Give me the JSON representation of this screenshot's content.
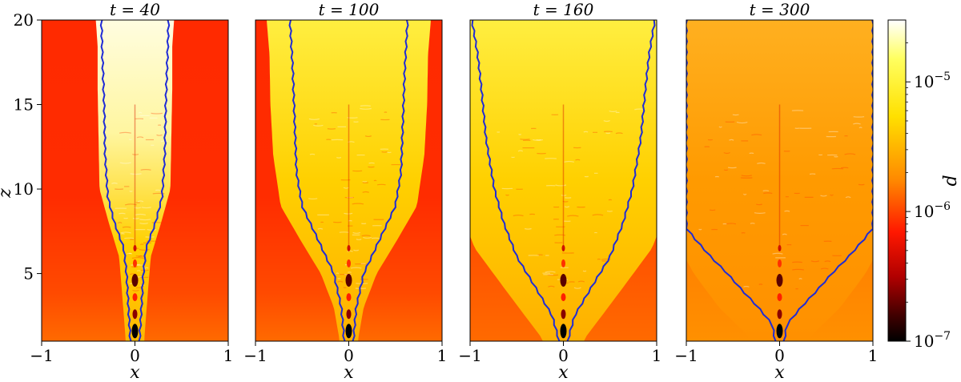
{
  "chart_data": {
    "type": "heatmap",
    "colormap": "hot",
    "contour_color": "#1f2bd6",
    "panels": [
      {
        "title": "t = 40",
        "xlim": [
          -1,
          1
        ],
        "ylim": [
          1,
          20
        ],
        "xticks": [
          "−1",
          "0",
          "1"
        ],
        "yticks": [
          "5",
          "10",
          "15",
          "20"
        ],
        "xlabel": "x",
        "ylabel": "z",
        "contour_halfwidth": [
          [
            1.1,
            0.05
          ],
          [
            3.0,
            0.07
          ],
          [
            5.0,
            0.09
          ],
          [
            6.5,
            0.12
          ],
          [
            8.0,
            0.22
          ],
          [
            9.5,
            0.29
          ],
          [
            12.0,
            0.32
          ],
          [
            15.0,
            0.33
          ],
          [
            18.0,
            0.35
          ],
          [
            20.0,
            0.36
          ]
        ],
        "bright_halfwidth": [
          [
            1.1,
            0.1
          ],
          [
            4.0,
            0.14
          ],
          [
            6.0,
            0.17
          ],
          [
            8.0,
            0.28
          ],
          [
            10.0,
            0.38
          ],
          [
            13.0,
            0.39
          ],
          [
            16.0,
            0.4
          ],
          [
            18.5,
            0.4
          ],
          [
            20.0,
            0.42
          ]
        ],
        "ambient": "red"
      },
      {
        "title": "t = 100",
        "xlim": [
          -1,
          1
        ],
        "ylim": [
          1,
          20
        ],
        "xticks": [
          "−1",
          "0",
          "1"
        ],
        "yticks": [],
        "xlabel": "x",
        "ylabel": "",
        "contour_halfwidth": [
          [
            1.1,
            0.05
          ],
          [
            3.0,
            0.08
          ],
          [
            5.0,
            0.16
          ],
          [
            7.0,
            0.33
          ],
          [
            9.0,
            0.5
          ],
          [
            11.0,
            0.56
          ],
          [
            14.0,
            0.58
          ],
          [
            17.0,
            0.6
          ],
          [
            20.0,
            0.63
          ]
        ],
        "bright_halfwidth": [
          [
            1.1,
            0.1
          ],
          [
            3.0,
            0.16
          ],
          [
            5.0,
            0.3
          ],
          [
            7.0,
            0.52
          ],
          [
            9.0,
            0.73
          ],
          [
            12.0,
            0.81
          ],
          [
            15.0,
            0.84
          ],
          [
            18.0,
            0.85
          ],
          [
            20.0,
            0.88
          ]
        ],
        "ambient": "red"
      },
      {
        "title": "t = 160",
        "xlim": [
          -1,
          1
        ],
        "ylim": [
          1,
          20
        ],
        "xticks": [
          "−1",
          "0",
          "1"
        ],
        "yticks": [],
        "xlabel": "x",
        "ylabel": "",
        "contour_halfwidth": [
          [
            1.1,
            0.05
          ],
          [
            2.5,
            0.12
          ],
          [
            4.0,
            0.28
          ],
          [
            6.0,
            0.5
          ],
          [
            8.0,
            0.64
          ],
          [
            10.0,
            0.74
          ],
          [
            13.0,
            0.83
          ],
          [
            16.0,
            0.88
          ],
          [
            18.0,
            0.92
          ],
          [
            20.0,
            0.98
          ]
        ],
        "bright_halfwidth": [
          [
            1.1,
            0.22
          ],
          [
            3.0,
            0.48
          ],
          [
            5.0,
            0.75
          ],
          [
            6.5,
            0.95
          ],
          [
            7.5,
            1.02
          ]
        ],
        "ambient": "yellow-top"
      },
      {
        "title": "t = 300",
        "xlim": [
          -1,
          1
        ],
        "ylim": [
          1,
          20
        ],
        "xticks": [
          "−1",
          "0",
          "1"
        ],
        "yticks": [],
        "xlabel": "x",
        "ylabel": "",
        "contour_halfwidth": [
          [
            1.1,
            0.05
          ],
          [
            2.0,
            0.08
          ],
          [
            3.0,
            0.23
          ],
          [
            4.0,
            0.4
          ],
          [
            5.0,
            0.56
          ],
          [
            6.0,
            0.74
          ],
          [
            7.0,
            0.9
          ],
          [
            7.7,
            1.0
          ]
        ],
        "bright_halfwidth": [
          [
            1.1,
            0.3
          ],
          [
            3.0,
            0.65
          ],
          [
            5.0,
            0.92
          ],
          [
            6.0,
            1.02
          ]
        ],
        "ambient": "orange-top"
      }
    ],
    "colorbar": {
      "label": "d",
      "scale": "log",
      "range": [
        1e-07,
        3e-05
      ],
      "ticks": [
        {
          "value": 1e-07,
          "base": "10",
          "exp": "−7"
        },
        {
          "value": 1e-06,
          "base": "10",
          "exp": "−6"
        },
        {
          "value": 1e-05,
          "base": "10",
          "exp": "−5"
        }
      ]
    }
  }
}
